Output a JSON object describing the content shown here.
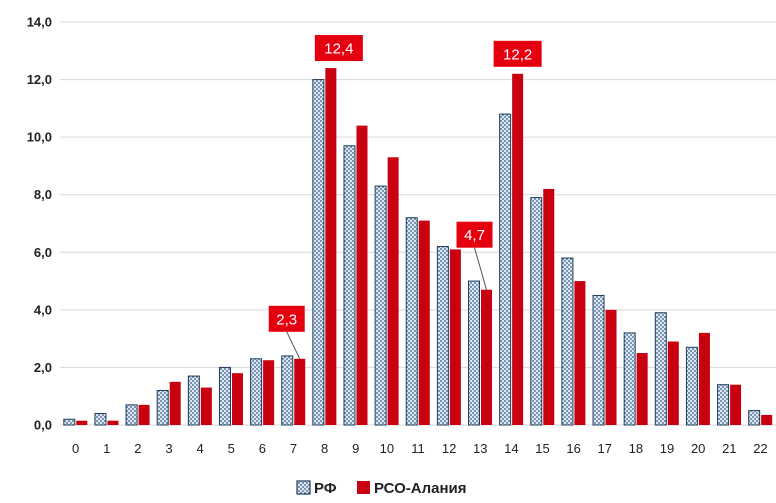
{
  "colors": {
    "rf_fill": "#dfe8f2",
    "rf_border": "#1f3c5a",
    "rf_pattern_dot": "#2e5a86",
    "rso_fill": "#c8000f",
    "callout_bg": "#e5000f",
    "callout_text": "#ffffff",
    "grid": "#d9d9d9"
  },
  "chart_data": {
    "type": "bar",
    "title": "",
    "xlabel": "",
    "ylabel": "",
    "categories": [
      "0",
      "1",
      "2",
      "3",
      "4",
      "5",
      "6",
      "7",
      "8",
      "9",
      "10",
      "11",
      "12",
      "13",
      "14",
      "15",
      "16",
      "17",
      "18",
      "19",
      "20",
      "21",
      "22"
    ],
    "ylim": [
      0,
      14
    ],
    "yticks": [
      0,
      2,
      4,
      6,
      8,
      10,
      12,
      14
    ],
    "ytick_labels": [
      "0,0",
      "2,0",
      "4,0",
      "6,0",
      "8,0",
      "10,0",
      "12,0",
      "14,0"
    ],
    "grid": true,
    "legend_position": "bottom",
    "series": [
      {
        "name": "РФ",
        "values": [
          0.2,
          0.4,
          0.7,
          1.2,
          1.7,
          2.0,
          2.3,
          2.4,
          12.0,
          9.7,
          8.3,
          7.2,
          6.2,
          5.0,
          10.8,
          7.9,
          5.8,
          4.5,
          3.2,
          3.9,
          2.7,
          1.4,
          0.5
        ]
      },
      {
        "name": "РСО-Алания",
        "values": [
          0.15,
          0.15,
          0.7,
          1.5,
          1.3,
          1.8,
          2.25,
          2.3,
          12.4,
          10.4,
          9.3,
          7.1,
          6.1,
          4.7,
          12.2,
          8.2,
          5.0,
          4.0,
          2.5,
          2.9,
          3.2,
          1.4,
          0.35
        ]
      }
    ],
    "annotations": [
      {
        "text": "12,4",
        "category": "8",
        "series": 1
      },
      {
        "text": "12,2",
        "category": "14",
        "series": 1
      },
      {
        "text": "4,7",
        "category": "13",
        "series": 1
      },
      {
        "text": "2,3",
        "category": "7",
        "series": 1
      }
    ]
  }
}
